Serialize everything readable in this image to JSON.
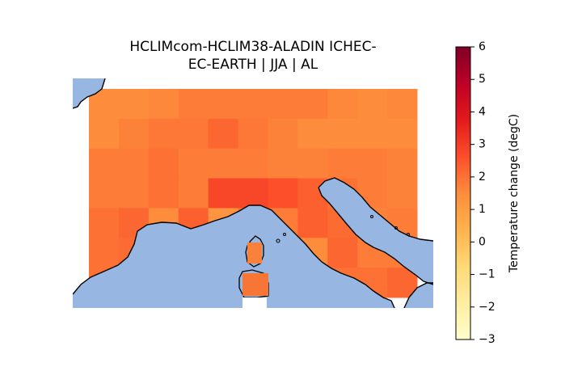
{
  "title_line1": "HCLIMcom-HCLIM38-ALADIN ICHEC-",
  "title_line2": "EC-EARTH | JJA | AL",
  "colorbar": {
    "label": "Temperature change (degC)",
    "min": -3,
    "max": 6,
    "ticks": [
      "6",
      "5",
      "4",
      "3",
      "2",
      "1",
      "0",
      "−1",
      "−2",
      "−3"
    ],
    "colormap": "YlOrRd"
  },
  "colors": {
    "sea": "#97b6e1",
    "land_outside_grid": "#ffffff",
    "coastline": "#000000"
  },
  "chart_data": {
    "type": "heatmap",
    "units": "degC",
    "rows": 7,
    "cols": 11,
    "values": [
      [
        1.5,
        1.5,
        1.6,
        1.8,
        1.8,
        1.8,
        1.8,
        1.8,
        1.6,
        1.5,
        1.6
      ],
      [
        1.5,
        1.7,
        1.9,
        1.9,
        2.2,
        1.9,
        1.7,
        1.5,
        1.5,
        1.5,
        1.5
      ],
      [
        1.8,
        1.8,
        2.0,
        1.8,
        1.8,
        1.8,
        1.7,
        1.7,
        1.8,
        1.8,
        1.7
      ],
      [
        1.8,
        1.8,
        2.0,
        1.8,
        2.8,
        2.8,
        2.6,
        2.3,
        2.0,
        1.8,
        1.7
      ],
      [
        2.0,
        2.2,
        1.5,
        2.3,
        1.3,
        2.0,
        1.8,
        2.3,
        2.1,
        1.7,
        1.8
      ],
      [
        2.0,
        2.1,
        1.8,
        1.8,
        2.0,
        2.0,
        1.8,
        1.5,
        2.2,
        1.8,
        1.8
      ],
      [
        2.0,
        2.0,
        2.0,
        1.8,
        1.8,
        2.2,
        1.8,
        1.8,
        2.0,
        2.0,
        2.2
      ]
    ]
  }
}
